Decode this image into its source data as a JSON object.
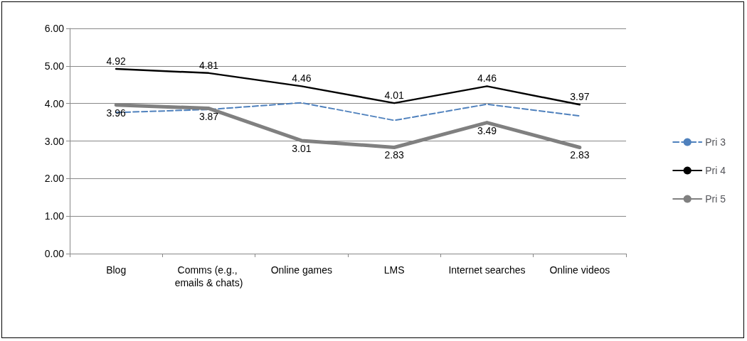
{
  "chart_data": {
    "type": "line",
    "categories": [
      "Blog",
      "Comms (e.g., emails & chats)",
      "Online games",
      "LMS",
      "Internet searches",
      "Online videos"
    ],
    "series": [
      {
        "name": "Pri 3",
        "color": "#4f81bd",
        "line_style": "dashed",
        "values": [
          3.76,
          3.84,
          4.02,
          3.55,
          3.98,
          3.67
        ]
      },
      {
        "name": "Pri 4",
        "color": "#000000",
        "line_style": "solid",
        "values": [
          4.92,
          4.81,
          4.46,
          4.01,
          4.46,
          3.97
        ],
        "value_labels": [
          "4.92",
          "4.81",
          "4.46",
          "4.01",
          "4.46",
          "3.97"
        ]
      },
      {
        "name": "Pri 5",
        "color": "#808080",
        "line_style": "solid",
        "values": [
          3.96,
          3.87,
          3.01,
          2.83,
          3.49,
          2.83
        ],
        "value_labels": [
          "3.96",
          "3.87",
          "3.01",
          "2.83",
          "3.49",
          "2.83"
        ]
      }
    ],
    "ylim": [
      0,
      6
    ],
    "yticks": [
      {
        "value": 0,
        "label": "0.00"
      },
      {
        "value": 1,
        "label": "1.00"
      },
      {
        "value": 2,
        "label": "2.00"
      },
      {
        "value": 3,
        "label": "3.00"
      },
      {
        "value": 4,
        "label": "4.00"
      },
      {
        "value": 5,
        "label": "5.00"
      },
      {
        "value": 6,
        "label": "6.00"
      }
    ],
    "grid": "y",
    "legend": "right",
    "marker": "none"
  }
}
